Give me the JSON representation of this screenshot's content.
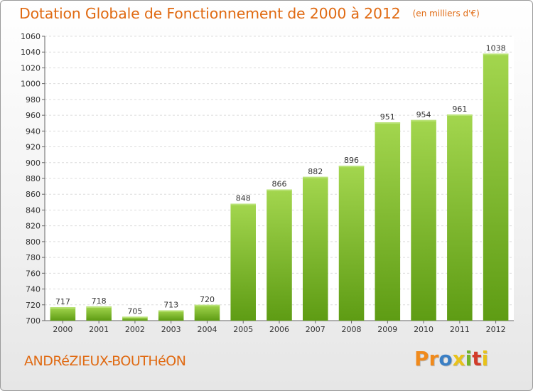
{
  "title": "Dotation Globale de Fonctionnement de 2000 à 2012",
  "unit_note": "(en milliers d'€)",
  "commune": "ANDRéZIEUX-BOUTHéON",
  "brand": {
    "letters": [
      "P",
      "r",
      "o",
      "x",
      "i",
      "t",
      "i"
    ],
    "colors": [
      "#f08a1c",
      "#f08a1c",
      "#3b7fc4",
      "#e8c21a",
      "#73b52a",
      "#d23c2a",
      "#e8c21a"
    ]
  },
  "colors": {
    "accent": "#e06a12",
    "bar_top": "#a3d64e",
    "bar_bottom": "#5e9c14",
    "grid": "#dcdcdc",
    "axis": "#666666"
  },
  "chart_data": {
    "type": "bar",
    "categories": [
      "2000",
      "2001",
      "2002",
      "2003",
      "2004",
      "2005",
      "2006",
      "2007",
      "2008",
      "2009",
      "2010",
      "2011",
      "2012"
    ],
    "values": [
      717,
      718,
      705,
      713,
      720,
      848,
      866,
      882,
      896,
      951,
      954,
      961,
      1038
    ],
    "value_labels": [
      "717",
      "718",
      "705",
      "713",
      "720",
      "848",
      "866",
      "882",
      "896",
      "951",
      "954",
      "961",
      "1038"
    ],
    "y_ticks": [
      "700",
      "720",
      "740",
      "760",
      "780",
      "800",
      "820",
      "840",
      "860",
      "880",
      "900",
      "920",
      "940",
      "960",
      "980",
      "1000",
      "1020",
      "1040",
      "1060"
    ],
    "ylim": [
      700,
      1060
    ],
    "grid": true,
    "legend": "none"
  }
}
